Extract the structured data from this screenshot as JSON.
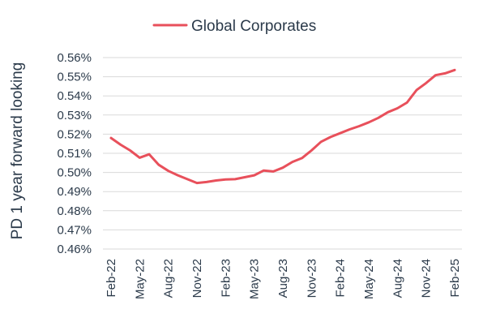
{
  "chart_data": {
    "type": "line",
    "ylabel": "PD 1 year forward looking",
    "xlabel": "",
    "title": "",
    "legend": "top-center",
    "grid": true,
    "ylim": [
      0.46,
      0.56
    ],
    "y_ticks": [
      "0.46%",
      "0.47%",
      "0.48%",
      "0.49%",
      "0.50%",
      "0.51%",
      "0.52%",
      "0.53%",
      "0.54%",
      "0.55%",
      "0.56%"
    ],
    "x_ticks": [
      "Feb-22",
      "May-22",
      "Aug-22",
      "Nov-22",
      "Feb-23",
      "May-23",
      "Aug-23",
      "Nov-23",
      "Feb-24",
      "May-24",
      "Aug-24",
      "Nov-24",
      "Feb-25"
    ],
    "categories": [
      "Feb-22",
      "Mar-22",
      "Apr-22",
      "May-22",
      "Jun-22",
      "Jul-22",
      "Aug-22",
      "Sep-22",
      "Oct-22",
      "Nov-22",
      "Dec-22",
      "Jan-23",
      "Feb-23",
      "Mar-23",
      "Apr-23",
      "May-23",
      "Jun-23",
      "Jul-23",
      "Aug-23",
      "Sep-23",
      "Oct-23",
      "Nov-23",
      "Dec-23",
      "Jan-24",
      "Feb-24",
      "Mar-24",
      "Apr-24",
      "May-24",
      "Jun-24",
      "Jul-24",
      "Aug-24",
      "Sep-24",
      "Oct-24",
      "Nov-24",
      "Dec-24",
      "Jan-25",
      "Feb-25"
    ],
    "series": [
      {
        "name": "Global Corporates",
        "color": "#e8505b",
        "values": [
          0.518,
          0.5145,
          0.5115,
          0.5077,
          0.5095,
          0.504,
          0.5008,
          0.4985,
          0.4965,
          0.4945,
          0.495,
          0.4958,
          0.4963,
          0.4965,
          0.4975,
          0.4985,
          0.501,
          0.5005,
          0.5025,
          0.5055,
          0.5075,
          0.5115,
          0.516,
          0.5185,
          0.5205,
          0.5225,
          0.5242,
          0.5262,
          0.5285,
          0.5315,
          0.5335,
          0.5365,
          0.543,
          0.5467,
          0.5508,
          0.5518,
          0.5535
        ]
      }
    ]
  }
}
